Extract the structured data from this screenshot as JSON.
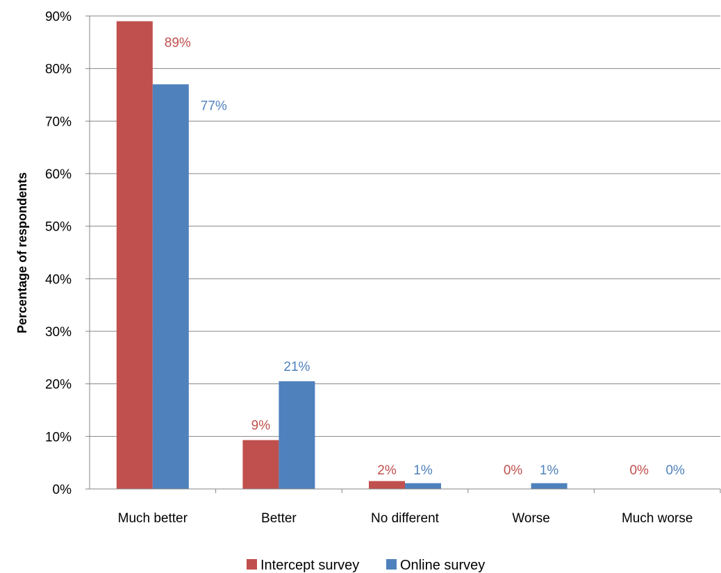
{
  "chart_data": {
    "type": "bar",
    "categories": [
      "Much better",
      "Better",
      "No different",
      "Worse",
      "Much worse"
    ],
    "series": [
      {
        "name": "Intercept survey",
        "color": "#c0504d",
        "values": [
          89,
          9.3,
          1.5,
          0,
          0
        ],
        "labels": [
          "89%",
          "9%",
          "2%",
          "0%",
          "0%"
        ]
      },
      {
        "name": "Online survey",
        "color": "#4f81bd",
        "values": [
          77,
          20.5,
          1.1,
          1.1,
          0
        ],
        "labels": [
          "77%",
          "21%",
          "1%",
          "1%",
          "0%"
        ]
      }
    ],
    "ylabel": "Percentage of respondents",
    "xlabel": "",
    "ylim": [
      0,
      90
    ],
    "yticks": [
      "0%",
      "10%",
      "20%",
      "30%",
      "40%",
      "50%",
      "60%",
      "70%",
      "80%",
      "90%"
    ],
    "grid": true,
    "gridColor": "#868686",
    "legend_position": "bottom"
  }
}
